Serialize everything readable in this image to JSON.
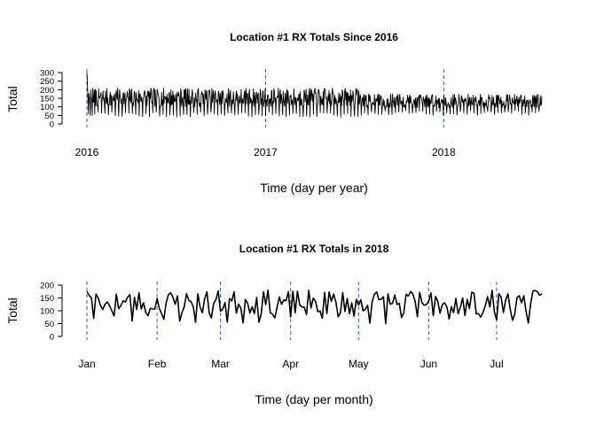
{
  "chart_data": [
    {
      "type": "line",
      "title": "Location #1 RX Totals Since 2016",
      "xlabel": "Time (day per year)",
      "ylabel": "Total",
      "x_range": [
        "2016-01-01",
        "2018-07-21"
      ],
      "ylim": [
        0,
        300
      ],
      "yticks": [
        0,
        50,
        100,
        150,
        200,
        250,
        300
      ],
      "xticks": [
        {
          "label": "2016",
          "date": "2016-01-01"
        },
        {
          "label": "2017",
          "date": "2017-01-01"
        },
        {
          "label": "2018",
          "date": "2018-01-01"
        }
      ],
      "reference_lines": [
        "2016-01-01",
        "2017-01-01",
        "2018-01-01"
      ],
      "grid": false,
      "line_color": "#000000",
      "reference_color": "#3355cc",
      "series": [
        {
          "x": [
            "2016-01-01",
            "2016-01-02",
            "2016-01-03",
            "2016-01-04",
            "2016-01-05",
            "2016-01-06",
            "2016-01-07",
            "2016-01-08",
            "2016-01-09",
            "2016-01-10",
            "2016-01-11",
            "2016-01-12",
            "2016-01-13",
            "2016-01-14"
          ],
          "y": [
            300,
            240,
            150,
            60,
            180,
            160,
            120,
            50,
            200,
            150,
            140,
            50,
            210,
            130
          ]
        }
      ]
    },
    {
      "type": "line",
      "title": "Location #1 RX Totals in 2018",
      "xlabel": "Time (day per month)",
      "ylabel": "Total",
      "x_range": [
        "2018-01-01",
        "2018-07-21"
      ],
      "ylim": [
        0,
        200
      ],
      "yticks": [
        0,
        50,
        100,
        150,
        200
      ],
      "xticks": [
        {
          "label": "Jan",
          "date": "2018-01-01"
        },
        {
          "label": "Feb",
          "date": "2018-02-01"
        },
        {
          "label": "Mar",
          "date": "2018-03-01"
        },
        {
          "label": "Apr",
          "date": "2018-04-01"
        },
        {
          "label": "May",
          "date": "2018-05-01"
        },
        {
          "label": "Jun",
          "date": "2018-06-01"
        },
        {
          "label": "Jul",
          "date": "2018-07-01"
        }
      ],
      "reference_lines": [
        "2018-01-01",
        "2018-02-01",
        "2018-03-01",
        "2018-04-01",
        "2018-05-01",
        "2018-06-01",
        "2018-07-01"
      ],
      "grid": false,
      "line_color": "#000000",
      "reference_color": "#3355cc",
      "series": [
        {
          "x": [
            "2018-01-01",
            "2018-01-02",
            "2018-01-03",
            "2018-01-04",
            "2018-01-05",
            "2018-01-06",
            "2018-01-07",
            "2018-01-08",
            "2018-01-09",
            "2018-01-10",
            "2018-01-11",
            "2018-01-12",
            "2018-01-13",
            "2018-01-14"
          ],
          "y": [
            175,
            160,
            150,
            70,
            165,
            150,
            120,
            105,
            125,
            135,
            120,
            100,
            80,
            165
          ]
        }
      ]
    }
  ]
}
